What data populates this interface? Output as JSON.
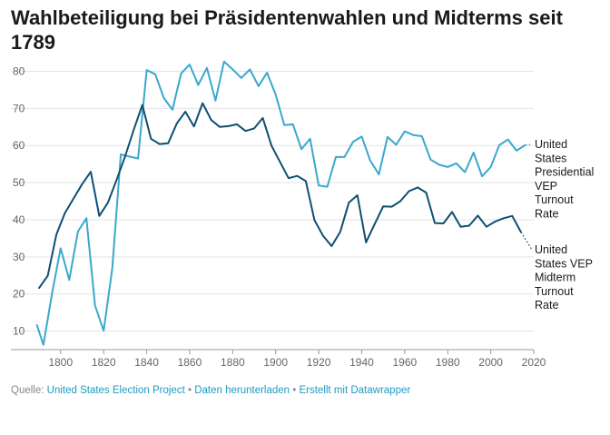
{
  "title": "Wahlbeteiligung bei Präsidentenwahlen und Midterms seit 1789",
  "source": {
    "prefix": "Quelle:",
    "project": "United States Election Project",
    "sep1": " • ",
    "download": "Daten herunterladen",
    "sep2": " • ",
    "made_with": "Erstellt mit Datawrapper"
  },
  "colors": {
    "presidential": "#3aa8cc",
    "midterm": "#0e4f72",
    "grid": "#e3e3e3"
  },
  "chart_data": {
    "type": "line",
    "title": "Wahlbeteiligung bei Präsidentenwahlen und Midterms seit 1789",
    "xlabel": "",
    "ylabel": "",
    "xlim": [
      1787,
      2020
    ],
    "ylim": [
      5,
      85
    ],
    "x_ticks": [
      1800,
      1820,
      1840,
      1860,
      1880,
      1900,
      1920,
      1940,
      1960,
      1980,
      2000,
      2020
    ],
    "y_ticks": [
      10,
      20,
      30,
      40,
      50,
      60,
      70,
      80
    ],
    "grid": true,
    "legend": "direct labels at right end of lines",
    "series": [
      {
        "name": "United States Presidential VEP Turnout Rate",
        "label_lines": [
          "United",
          "States",
          "Presidential",
          "VEP",
          "Turnout",
          "Rate"
        ],
        "color": "#3aa8cc",
        "x": [
          1789,
          1792,
          1796,
          1800,
          1804,
          1808,
          1812,
          1816,
          1820,
          1824,
          1828,
          1832,
          1836,
          1840,
          1844,
          1848,
          1852,
          1856,
          1860,
          1864,
          1868,
          1872,
          1876,
          1880,
          1884,
          1888,
          1892,
          1896,
          1900,
          1904,
          1908,
          1912,
          1916,
          1920,
          1924,
          1928,
          1932,
          1936,
          1940,
          1944,
          1948,
          1952,
          1956,
          1960,
          1964,
          1968,
          1972,
          1976,
          1980,
          1984,
          1988,
          1992,
          1996,
          2000,
          2004,
          2008,
          2012,
          2016
        ],
        "values": [
          11.6,
          6.3,
          20.1,
          32.3,
          23.8,
          36.8,
          40.4,
          16.9,
          10.1,
          26.9,
          57.6,
          57.0,
          56.5,
          80.3,
          79.2,
          72.8,
          69.6,
          79.4,
          81.8,
          76.3,
          80.9,
          72.1,
          82.6,
          80.5,
          78.2,
          80.5,
          76.0,
          79.6,
          73.7,
          65.5,
          65.7,
          59.0,
          61.8,
          49.2,
          48.9,
          56.9,
          56.9,
          61.0,
          62.4,
          55.9,
          52.2,
          62.3,
          60.2,
          63.8,
          62.8,
          62.5,
          56.2,
          54.8,
          54.2,
          55.2,
          52.8,
          58.1,
          51.7,
          54.2,
          60.1,
          61.6,
          58.6,
          60.1
        ]
      },
      {
        "name": "United States VEP Midterm Turnout Rate",
        "label_lines": [
          "United",
          "States VEP",
          "Midterm",
          "Turnout",
          "Rate"
        ],
        "color": "#0e4f72",
        "x": [
          1790,
          1794,
          1798,
          1802,
          1806,
          1810,
          1814,
          1818,
          1822,
          1826,
          1830,
          1834,
          1838,
          1842,
          1846,
          1850,
          1854,
          1858,
          1862,
          1866,
          1870,
          1874,
          1878,
          1882,
          1886,
          1890,
          1894,
          1898,
          1902,
          1906,
          1910,
          1914,
          1918,
          1922,
          1926,
          1930,
          1934,
          1938,
          1942,
          1946,
          1950,
          1954,
          1958,
          1962,
          1966,
          1970,
          1974,
          1978,
          1982,
          1986,
          1990,
          1994,
          1998,
          2002,
          2006,
          2010,
          2014
        ],
        "values": [
          21.6,
          24.9,
          36.0,
          41.8,
          45.7,
          49.6,
          52.9,
          41.0,
          44.6,
          50.7,
          57.1,
          64.2,
          70.9,
          61.8,
          60.4,
          60.6,
          65.9,
          69.1,
          65.1,
          71.4,
          66.9,
          65.0,
          65.2,
          65.7,
          63.9,
          64.6,
          67.4,
          60.0,
          55.6,
          51.2,
          51.8,
          50.4,
          39.9,
          35.7,
          32.9,
          36.7,
          44.6,
          46.6,
          33.9,
          38.8,
          43.6,
          43.5,
          45.0,
          47.7,
          48.7,
          47.3,
          39.1,
          39.0,
          42.1,
          38.1,
          38.4,
          41.1,
          38.1,
          39.5,
          40.4,
          41.0,
          36.7
        ]
      }
    ]
  }
}
